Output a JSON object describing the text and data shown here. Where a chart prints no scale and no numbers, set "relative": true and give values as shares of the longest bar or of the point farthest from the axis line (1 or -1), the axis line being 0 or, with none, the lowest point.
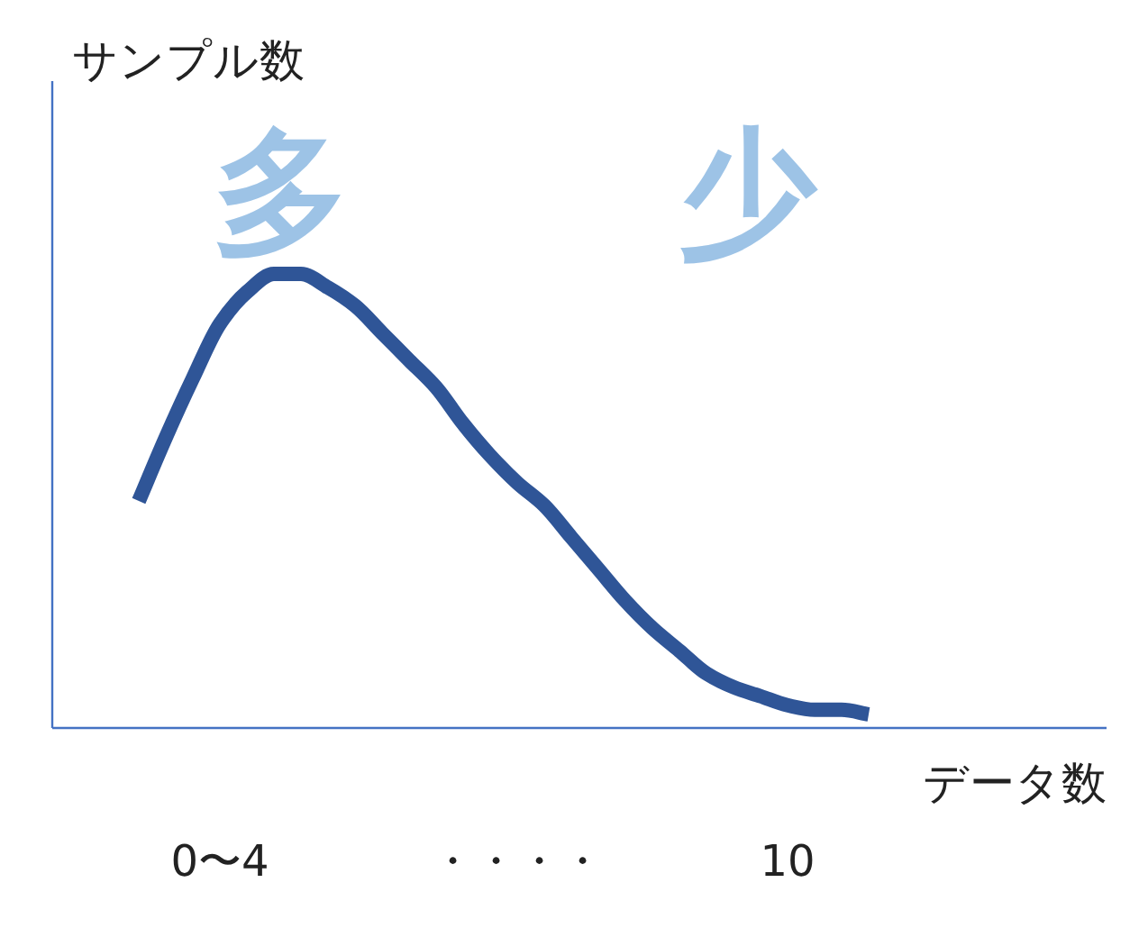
{
  "chart_data": {
    "type": "line",
    "relative": true,
    "ylabel": "サンプル数",
    "xlabel": "データ数",
    "categories": [
      null,
      null,
      null,
      "0〜4",
      null,
      null,
      null,
      null,
      null,
      null,
      null,
      null,
      null,
      null,
      "・・・・",
      null,
      null,
      null,
      null,
      null,
      null,
      null,
      null,
      null,
      "10",
      null,
      null,
      null
    ],
    "series": [
      {
        "color": "#2f5597",
        "values": [
          0.5,
          0.64,
          0.77,
          0.89,
          0.96,
          1.0,
          1.0,
          0.97,
          0.93,
          0.87,
          0.81,
          0.75,
          0.67,
          0.6,
          0.54,
          0.49,
          0.42,
          0.35,
          0.28,
          0.22,
          0.17,
          0.12,
          0.09,
          0.07,
          0.05,
          0.04,
          0.04,
          0.03
        ]
      }
    ],
    "annotations": [
      "多",
      "少"
    ],
    "line_style": "solid"
  }
}
